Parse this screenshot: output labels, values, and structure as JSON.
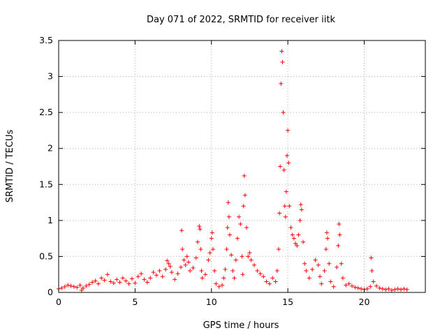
{
  "chart_data": {
    "type": "scatter",
    "title": "Day 071 of 2022, SRMTID for receiver iitk",
    "xlabel": "GPS time / hours",
    "ylabel": "SRMTID / TECUs",
    "xlim": [
      0,
      24
    ],
    "ylim": [
      0,
      3.5
    ],
    "xticks": [
      0,
      5,
      10,
      15,
      20
    ],
    "yticks": [
      0,
      0.5,
      1,
      1.5,
      2,
      2.5,
      3,
      3.5
    ],
    "xtick_labels": [
      "0",
      "5",
      "10",
      "15",
      "20"
    ],
    "ytick_labels": [
      "0",
      "0.5",
      "1",
      "1.5",
      "2",
      "2.5",
      "3",
      "3.5"
    ],
    "marker": "+",
    "color": "#ff0000",
    "grid": true,
    "series": [
      {
        "name": "SRMTID",
        "points": [
          [
            0.0,
            0.05
          ],
          [
            0.2,
            0.06
          ],
          [
            0.4,
            0.08
          ],
          [
            0.6,
            0.1
          ],
          [
            0.8,
            0.09
          ],
          [
            1.0,
            0.08
          ],
          [
            1.2,
            0.07
          ],
          [
            1.4,
            0.1
          ],
          [
            1.5,
            0.03
          ],
          [
            1.6,
            0.06
          ],
          [
            1.8,
            0.09
          ],
          [
            2.0,
            0.11
          ],
          [
            2.2,
            0.14
          ],
          [
            2.4,
            0.16
          ],
          [
            2.6,
            0.12
          ],
          [
            2.8,
            0.2
          ],
          [
            3.0,
            0.17
          ],
          [
            3.2,
            0.25
          ],
          [
            3.4,
            0.15
          ],
          [
            3.6,
            0.13
          ],
          [
            3.8,
            0.18
          ],
          [
            4.0,
            0.14
          ],
          [
            4.2,
            0.2
          ],
          [
            4.4,
            0.16
          ],
          [
            4.6,
            0.12
          ],
          [
            4.8,
            0.19
          ],
          [
            5.0,
            0.13
          ],
          [
            5.2,
            0.22
          ],
          [
            5.4,
            0.26
          ],
          [
            5.6,
            0.18
          ],
          [
            5.8,
            0.14
          ],
          [
            6.0,
            0.2
          ],
          [
            6.2,
            0.28
          ],
          [
            6.4,
            0.24
          ],
          [
            6.6,
            0.3
          ],
          [
            6.8,
            0.22
          ],
          [
            7.0,
            0.32
          ],
          [
            7.1,
            0.44
          ],
          [
            7.2,
            0.4
          ],
          [
            7.3,
            0.36
          ],
          [
            7.4,
            0.28
          ],
          [
            7.6,
            0.18
          ],
          [
            7.8,
            0.26
          ],
          [
            8.0,
            0.35
          ],
          [
            8.05,
            0.86
          ],
          [
            8.1,
            0.6
          ],
          [
            8.2,
            0.45
          ],
          [
            8.3,
            0.38
          ],
          [
            8.4,
            0.5
          ],
          [
            8.5,
            0.42
          ],
          [
            8.6,
            0.3
          ],
          [
            8.8,
            0.34
          ],
          [
            9.0,
            0.48
          ],
          [
            9.1,
            0.7
          ],
          [
            9.2,
            0.92
          ],
          [
            9.25,
            0.88
          ],
          [
            9.3,
            0.6
          ],
          [
            9.35,
            0.3
          ],
          [
            9.4,
            0.2
          ],
          [
            9.6,
            0.25
          ],
          [
            9.8,
            0.45
          ],
          [
            9.9,
            0.55
          ],
          [
            10.0,
            0.75
          ],
          [
            10.05,
            0.83
          ],
          [
            10.1,
            0.6
          ],
          [
            10.2,
            0.3
          ],
          [
            10.3,
            0.12
          ],
          [
            10.5,
            0.08
          ],
          [
            10.7,
            0.1
          ],
          [
            10.8,
            0.2
          ],
          [
            10.9,
            0.32
          ],
          [
            11.0,
            0.6
          ],
          [
            11.05,
            0.9
          ],
          [
            11.1,
            1.25
          ],
          [
            11.15,
            1.05
          ],
          [
            11.2,
            0.8
          ],
          [
            11.3,
            0.52
          ],
          [
            11.4,
            0.3
          ],
          [
            11.5,
            0.2
          ],
          [
            11.6,
            0.45
          ],
          [
            11.7,
            0.75
          ],
          [
            11.8,
            1.05
          ],
          [
            11.9,
            0.95
          ],
          [
            12.0,
            0.5
          ],
          [
            12.05,
            0.25
          ],
          [
            12.1,
            1.2
          ],
          [
            12.15,
            1.62
          ],
          [
            12.2,
            1.35
          ],
          [
            12.3,
            0.9
          ],
          [
            12.4,
            0.5
          ],
          [
            12.5,
            0.55
          ],
          [
            12.6,
            0.45
          ],
          [
            12.8,
            0.38
          ],
          [
            13.0,
            0.3
          ],
          [
            13.2,
            0.26
          ],
          [
            13.4,
            0.22
          ],
          [
            13.6,
            0.15
          ],
          [
            13.8,
            0.12
          ],
          [
            14.0,
            0.2
          ],
          [
            14.2,
            0.15
          ],
          [
            14.3,
            0.3
          ],
          [
            14.4,
            0.6
          ],
          [
            14.45,
            1.1
          ],
          [
            14.5,
            1.75
          ],
          [
            14.55,
            2.9
          ],
          [
            14.6,
            3.35
          ],
          [
            14.65,
            3.2
          ],
          [
            14.7,
            2.5
          ],
          [
            14.75,
            1.7
          ],
          [
            14.8,
            1.2
          ],
          [
            14.85,
            1.05
          ],
          [
            14.9,
            1.4
          ],
          [
            14.95,
            1.9
          ],
          [
            15.0,
            2.25
          ],
          [
            15.05,
            1.8
          ],
          [
            15.1,
            1.2
          ],
          [
            15.2,
            0.9
          ],
          [
            15.3,
            0.8
          ],
          [
            15.4,
            0.75
          ],
          [
            15.5,
            0.68
          ],
          [
            15.6,
            0.65
          ],
          [
            15.7,
            0.8
          ],
          [
            15.8,
            1.0
          ],
          [
            15.85,
            1.22
          ],
          [
            15.9,
            1.15
          ],
          [
            16.0,
            0.7
          ],
          [
            16.1,
            0.4
          ],
          [
            16.2,
            0.3
          ],
          [
            16.4,
            0.2
          ],
          [
            16.6,
            0.32
          ],
          [
            16.8,
            0.45
          ],
          [
            17.0,
            0.38
          ],
          [
            17.1,
            0.22
          ],
          [
            17.2,
            0.12
          ],
          [
            17.4,
            0.3
          ],
          [
            17.5,
            0.6
          ],
          [
            17.55,
            0.83
          ],
          [
            17.6,
            0.75
          ],
          [
            17.7,
            0.4
          ],
          [
            17.8,
            0.15
          ],
          [
            18.0,
            0.08
          ],
          [
            18.2,
            0.35
          ],
          [
            18.3,
            0.65
          ],
          [
            18.35,
            0.95
          ],
          [
            18.4,
            0.8
          ],
          [
            18.5,
            0.4
          ],
          [
            18.6,
            0.2
          ],
          [
            18.8,
            0.1
          ],
          [
            19.0,
            0.12
          ],
          [
            19.2,
            0.09
          ],
          [
            19.4,
            0.07
          ],
          [
            19.6,
            0.06
          ],
          [
            19.8,
            0.05
          ],
          [
            20.0,
            0.04
          ],
          [
            20.2,
            0.05
          ],
          [
            20.4,
            0.08
          ],
          [
            20.45,
            0.48
          ],
          [
            20.5,
            0.3
          ],
          [
            20.6,
            0.15
          ],
          [
            20.8,
            0.09
          ],
          [
            21.0,
            0.06
          ],
          [
            21.2,
            0.05
          ],
          [
            21.4,
            0.04
          ],
          [
            21.6,
            0.05
          ],
          [
            21.8,
            0.03
          ],
          [
            22.0,
            0.04
          ],
          [
            22.2,
            0.05
          ],
          [
            22.4,
            0.04
          ],
          [
            22.6,
            0.05
          ],
          [
            22.8,
            0.04
          ]
        ]
      }
    ]
  }
}
